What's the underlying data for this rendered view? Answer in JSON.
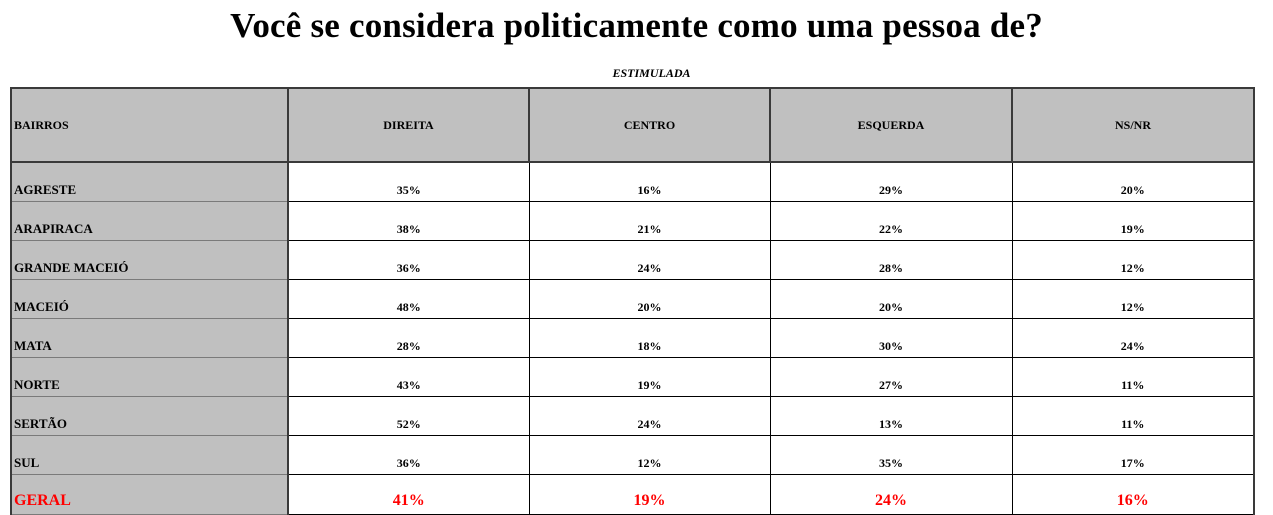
{
  "title": "Você se considera politicamente como uma pessoa de?",
  "subtitle": "ESTIMULADA",
  "colors": {
    "header_bg": "#c0c0c0",
    "total_text": "#ff0000"
  },
  "table": {
    "headers": [
      "BAIRROS",
      "DIREITA",
      "CENTRO",
      "ESQUERDA",
      "NS/NR"
    ],
    "rows": [
      {
        "name": "AGRESTE",
        "values": [
          "35%",
          "16%",
          "29%",
          "20%"
        ]
      },
      {
        "name": "ARAPIRACA",
        "values": [
          "38%",
          "21%",
          "22%",
          "19%"
        ]
      },
      {
        "name": "GRANDE MACEIÓ",
        "values": [
          "36%",
          "24%",
          "28%",
          "12%"
        ]
      },
      {
        "name": "MACEIÓ",
        "values": [
          "48%",
          "20%",
          "20%",
          "12%"
        ]
      },
      {
        "name": "MATA",
        "values": [
          "28%",
          "18%",
          "30%",
          "24%"
        ]
      },
      {
        "name": "NORTE",
        "values": [
          "43%",
          "19%",
          "27%",
          "11%"
        ]
      },
      {
        "name": "SERTÃO",
        "values": [
          "52%",
          "24%",
          "13%",
          "11%"
        ]
      },
      {
        "name": "SUL",
        "values": [
          "36%",
          "12%",
          "35%",
          "17%"
        ]
      }
    ],
    "total": {
      "name": "GERAL",
      "values": [
        "41%",
        "19%",
        "24%",
        "16%"
      ]
    }
  }
}
